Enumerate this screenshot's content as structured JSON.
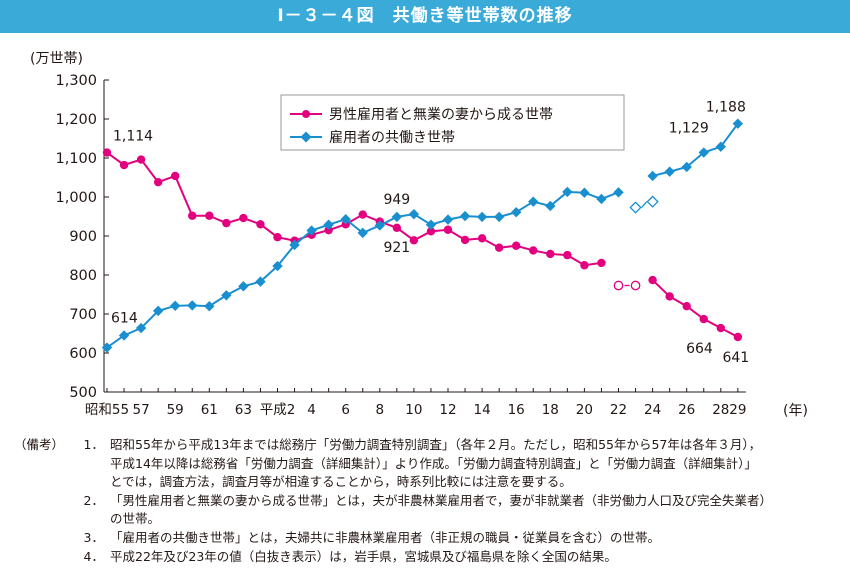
{
  "title": "Ⅰ－３－４図　共働き等世帯数の推移",
  "chart_data": {
    "type": "line",
    "unit_label": "(万世帯)",
    "x_unit_label": "(年)",
    "ylim": [
      500,
      1300
    ],
    "yticks": [
      "500",
      "600",
      "700",
      "800",
      "900",
      "1,000",
      "1,100",
      "1,200",
      "1,300"
    ],
    "grid": false,
    "legend_position": "top-center",
    "x_tick_labels": [
      {
        "i": 0,
        "label": "昭和55"
      },
      {
        "i": 2,
        "label": "57"
      },
      {
        "i": 4,
        "label": "59"
      },
      {
        "i": 6,
        "label": "61"
      },
      {
        "i": 8,
        "label": "63"
      },
      {
        "i": 10,
        "label": "平成2"
      },
      {
        "i": 12,
        "label": "4"
      },
      {
        "i": 14,
        "label": "6"
      },
      {
        "i": 16,
        "label": "8"
      },
      {
        "i": 18,
        "label": "10"
      },
      {
        "i": 20,
        "label": "12"
      },
      {
        "i": 22,
        "label": "14"
      },
      {
        "i": 24,
        "label": "16"
      },
      {
        "i": 26,
        "label": "18"
      },
      {
        "i": 28,
        "label": "20"
      },
      {
        "i": 30,
        "label": "22"
      },
      {
        "i": 32,
        "label": "24"
      },
      {
        "i": 34,
        "label": "26"
      },
      {
        "i": 36,
        "label": "28"
      },
      {
        "i": 37,
        "label": "29"
      }
    ],
    "series": [
      {
        "name": "男性雇用者と無業の妻から成る世帯",
        "color": "#e3007f",
        "marker": "circle",
        "values": [
          1114,
          1082,
          1096,
          1038,
          1054,
          952,
          952,
          933,
          946,
          930,
          897,
          888,
          903,
          915,
          930,
          955,
          937,
          921,
          889,
          912,
          916,
          890,
          894,
          870,
          875,
          863,
          854,
          851,
          825,
          831,
          null,
          null,
          787,
          745,
          720,
          687,
          664,
          641
        ],
        "hollow_points": [
          {
            "i": 30,
            "value": 773
          },
          {
            "i": 31,
            "value": 773
          }
        ],
        "data_labels": [
          {
            "i": 0,
            "text": "1,114"
          },
          {
            "i": 17,
            "text": "921"
          },
          {
            "i": 36,
            "text": "664"
          },
          {
            "i": 37,
            "text": "641"
          }
        ]
      },
      {
        "name": "雇用者の共働き世帯",
        "color": "#1a8fd0",
        "marker": "diamond",
        "values": [
          614,
          645,
          664,
          708,
          721,
          722,
          720,
          748,
          771,
          783,
          823,
          877,
          914,
          929,
          943,
          908,
          927,
          949,
          956,
          929,
          942,
          951,
          949,
          949,
          961,
          988,
          977,
          1013,
          1011,
          995,
          1012,
          null,
          1054,
          1065,
          1077,
          1114,
          1129,
          1188
        ],
        "hollow_points": [
          {
            "i": 31,
            "value": 973
          },
          {
            "i": 32,
            "value": 988
          }
        ],
        "data_labels": [
          {
            "i": 0,
            "text": "614"
          },
          {
            "i": 17,
            "text": "949"
          },
          {
            "i": 36,
            "text": "1,129"
          },
          {
            "i": 37,
            "text": "1,188"
          }
        ]
      }
    ]
  },
  "notes": {
    "head": "（備考）",
    "items": [
      {
        "num": "1．",
        "lines": [
          "昭和55年から平成13年までは総務庁「労働力調査特別調査」（各年２月。ただし，昭和55年から57年は各年３月），",
          "平成14年以降は総務省「労働力調査（詳細集計）」より作成。「労働力調査特別調査」と「労働力調査（詳細集計）」",
          "とでは，調査方法，調査月等が相違することから，時系列比較には注意を要する。"
        ]
      },
      {
        "num": "2．",
        "lines": [
          "「男性雇用者と無業の妻から成る世帯」とは，夫が非農林業雇用者で，妻が非就業者（非労働力人口及び完全失業者）",
          "の世帯。"
        ]
      },
      {
        "num": "3．",
        "lines": [
          "「雇用者の共働き世帯」とは，夫婦共に非農林業雇用者（非正規の職員・従業員を含む）の世帯。"
        ]
      },
      {
        "num": "4．",
        "lines": [
          "平成22年及び23年の値（白抜き表示）は，岩手県，宮城県及び福島県を除く全国の結果。"
        ]
      }
    ]
  }
}
